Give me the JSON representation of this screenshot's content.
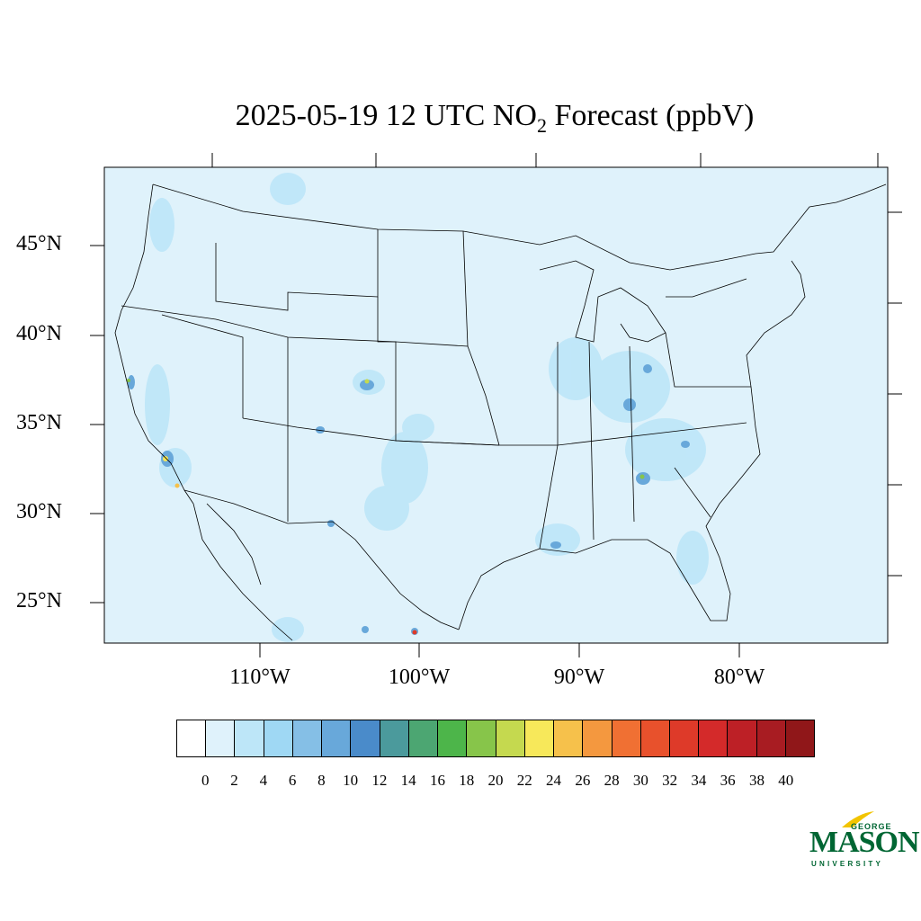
{
  "title": {
    "prefix": "2025-05-19 12 UTC NO",
    "subscript": "2",
    "suffix": " Forecast (ppbV)"
  },
  "map": {
    "background_color": "#dff2fb",
    "lat_labels": [
      "45°N",
      "40°N",
      "35°N",
      "30°N",
      "25°N"
    ],
    "lon_labels": [
      "110°W",
      "100°W",
      "90°W",
      "80°W"
    ]
  },
  "colorbar": {
    "colors": [
      "#ffffff",
      "#dff2fb",
      "#bde6f8",
      "#9fd8f4",
      "#85bfe6",
      "#68a8da",
      "#4a8bca",
      "#4b9a9c",
      "#4ca672",
      "#4db54a",
      "#87c54a",
      "#c5d94f",
      "#f7e85a",
      "#f6c14b",
      "#f4983f",
      "#f07033",
      "#e8512c",
      "#de3a29",
      "#d42a2a",
      "#bd2026",
      "#a81c22",
      "#901719"
    ],
    "ticks": [
      "0",
      "2",
      "4",
      "6",
      "8",
      "10",
      "12",
      "14",
      "16",
      "18",
      "20",
      "22",
      "24",
      "26",
      "28",
      "30",
      "32",
      "34",
      "36",
      "38",
      "40"
    ]
  },
  "logo": {
    "george": "GEORGE",
    "mason": "MASON",
    "university": "UNIVERSITY",
    "color": "#006633",
    "accent": "#f2c400"
  }
}
